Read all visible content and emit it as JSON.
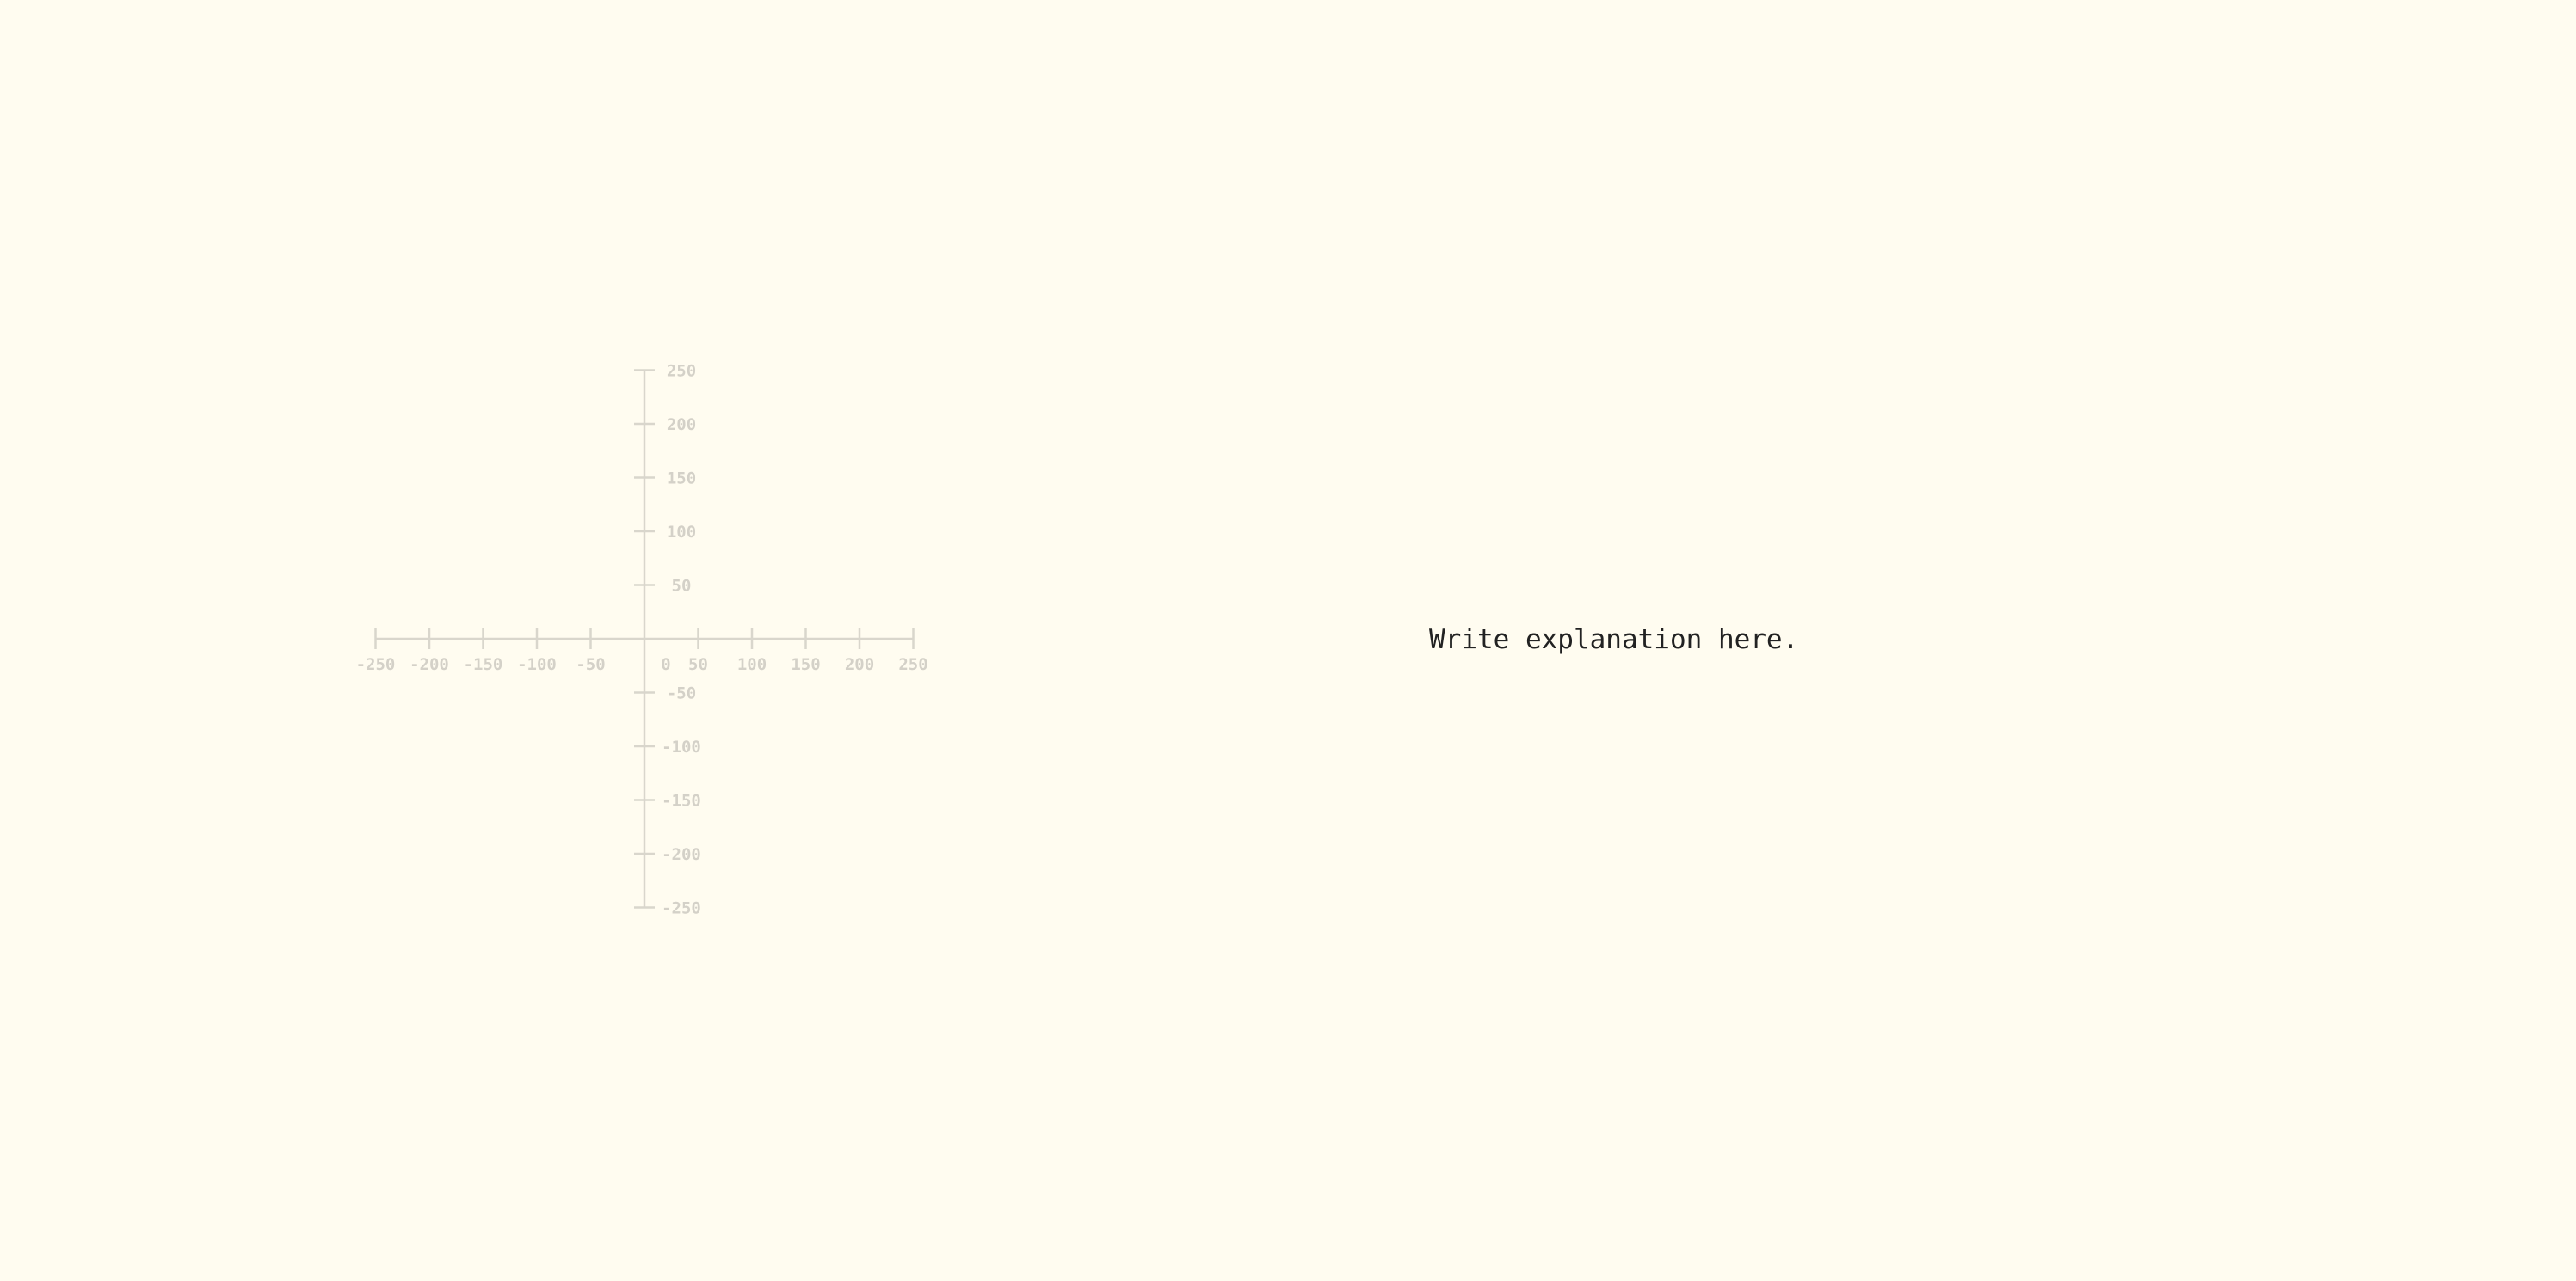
{
  "explanation": {
    "text": "Write explanation here."
  },
  "chart_data": {
    "type": "scatter",
    "title": "",
    "xlabel": "",
    "ylabel": "",
    "xlim": [
      -250,
      250
    ],
    "ylim": [
      -250,
      250
    ],
    "x_ticks": [
      -250,
      -200,
      -150,
      -100,
      -50,
      0,
      50,
      100,
      150,
      200,
      250
    ],
    "y_ticks": [
      -250,
      -200,
      -150,
      -100,
      -50,
      50,
      100,
      150,
      200,
      250
    ],
    "x_tick_labels": [
      "-250",
      "-200",
      "-150",
      "-100",
      "-50",
      "0",
      "50",
      "100",
      "150",
      "200",
      "250"
    ],
    "y_tick_labels": [
      "-250",
      "-200",
      "-150",
      "-100",
      "-50",
      "50",
      "100",
      "150",
      "200",
      "250"
    ],
    "grid": false,
    "series": [],
    "axis_color": "#d9d6cc",
    "label_color": "#d4d1c8",
    "background_color": "#fffcf0"
  }
}
